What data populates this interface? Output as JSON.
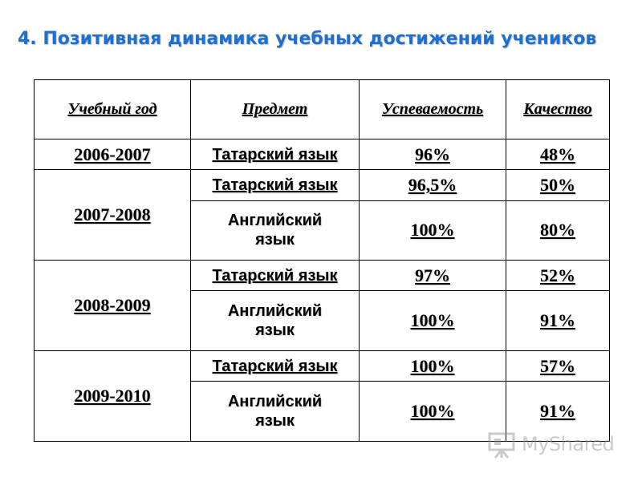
{
  "title": "4. Позитивная динамика учебных достижений учеников",
  "table": {
    "headers": [
      "Учебный год",
      "Предмет",
      "Успеваемость",
      "Качество"
    ],
    "groups": [
      {
        "year": "2006-2007",
        "rows": [
          {
            "subject": "Татарский язык",
            "progress": "96%",
            "quality": "48%"
          }
        ]
      },
      {
        "year": "2007-2008",
        "rows": [
          {
            "subject": "Татарский язык",
            "progress": "96,5%",
            "quality": "50%"
          },
          {
            "subject": "Английский язык",
            "progress": "100%",
            "quality": "80%"
          }
        ]
      },
      {
        "year": "2008-2009",
        "rows": [
          {
            "subject": "Татарский язык",
            "progress": "97%",
            "quality": "52%"
          },
          {
            "subject": "Английский язык",
            "progress": "100%",
            "quality": "91%"
          }
        ]
      },
      {
        "year": "2009-2010",
        "rows": [
          {
            "subject": "Татарский язык",
            "progress": "100%",
            "quality": "57%"
          },
          {
            "subject": "Английский язык",
            "progress": "100%",
            "quality": "91%"
          }
        ]
      }
    ]
  },
  "watermark": {
    "text": "MyShared",
    "icon": "presentation-board-icon"
  },
  "colors": {
    "title": "#1f6fd1",
    "text": "#000000",
    "border": "#000000"
  }
}
